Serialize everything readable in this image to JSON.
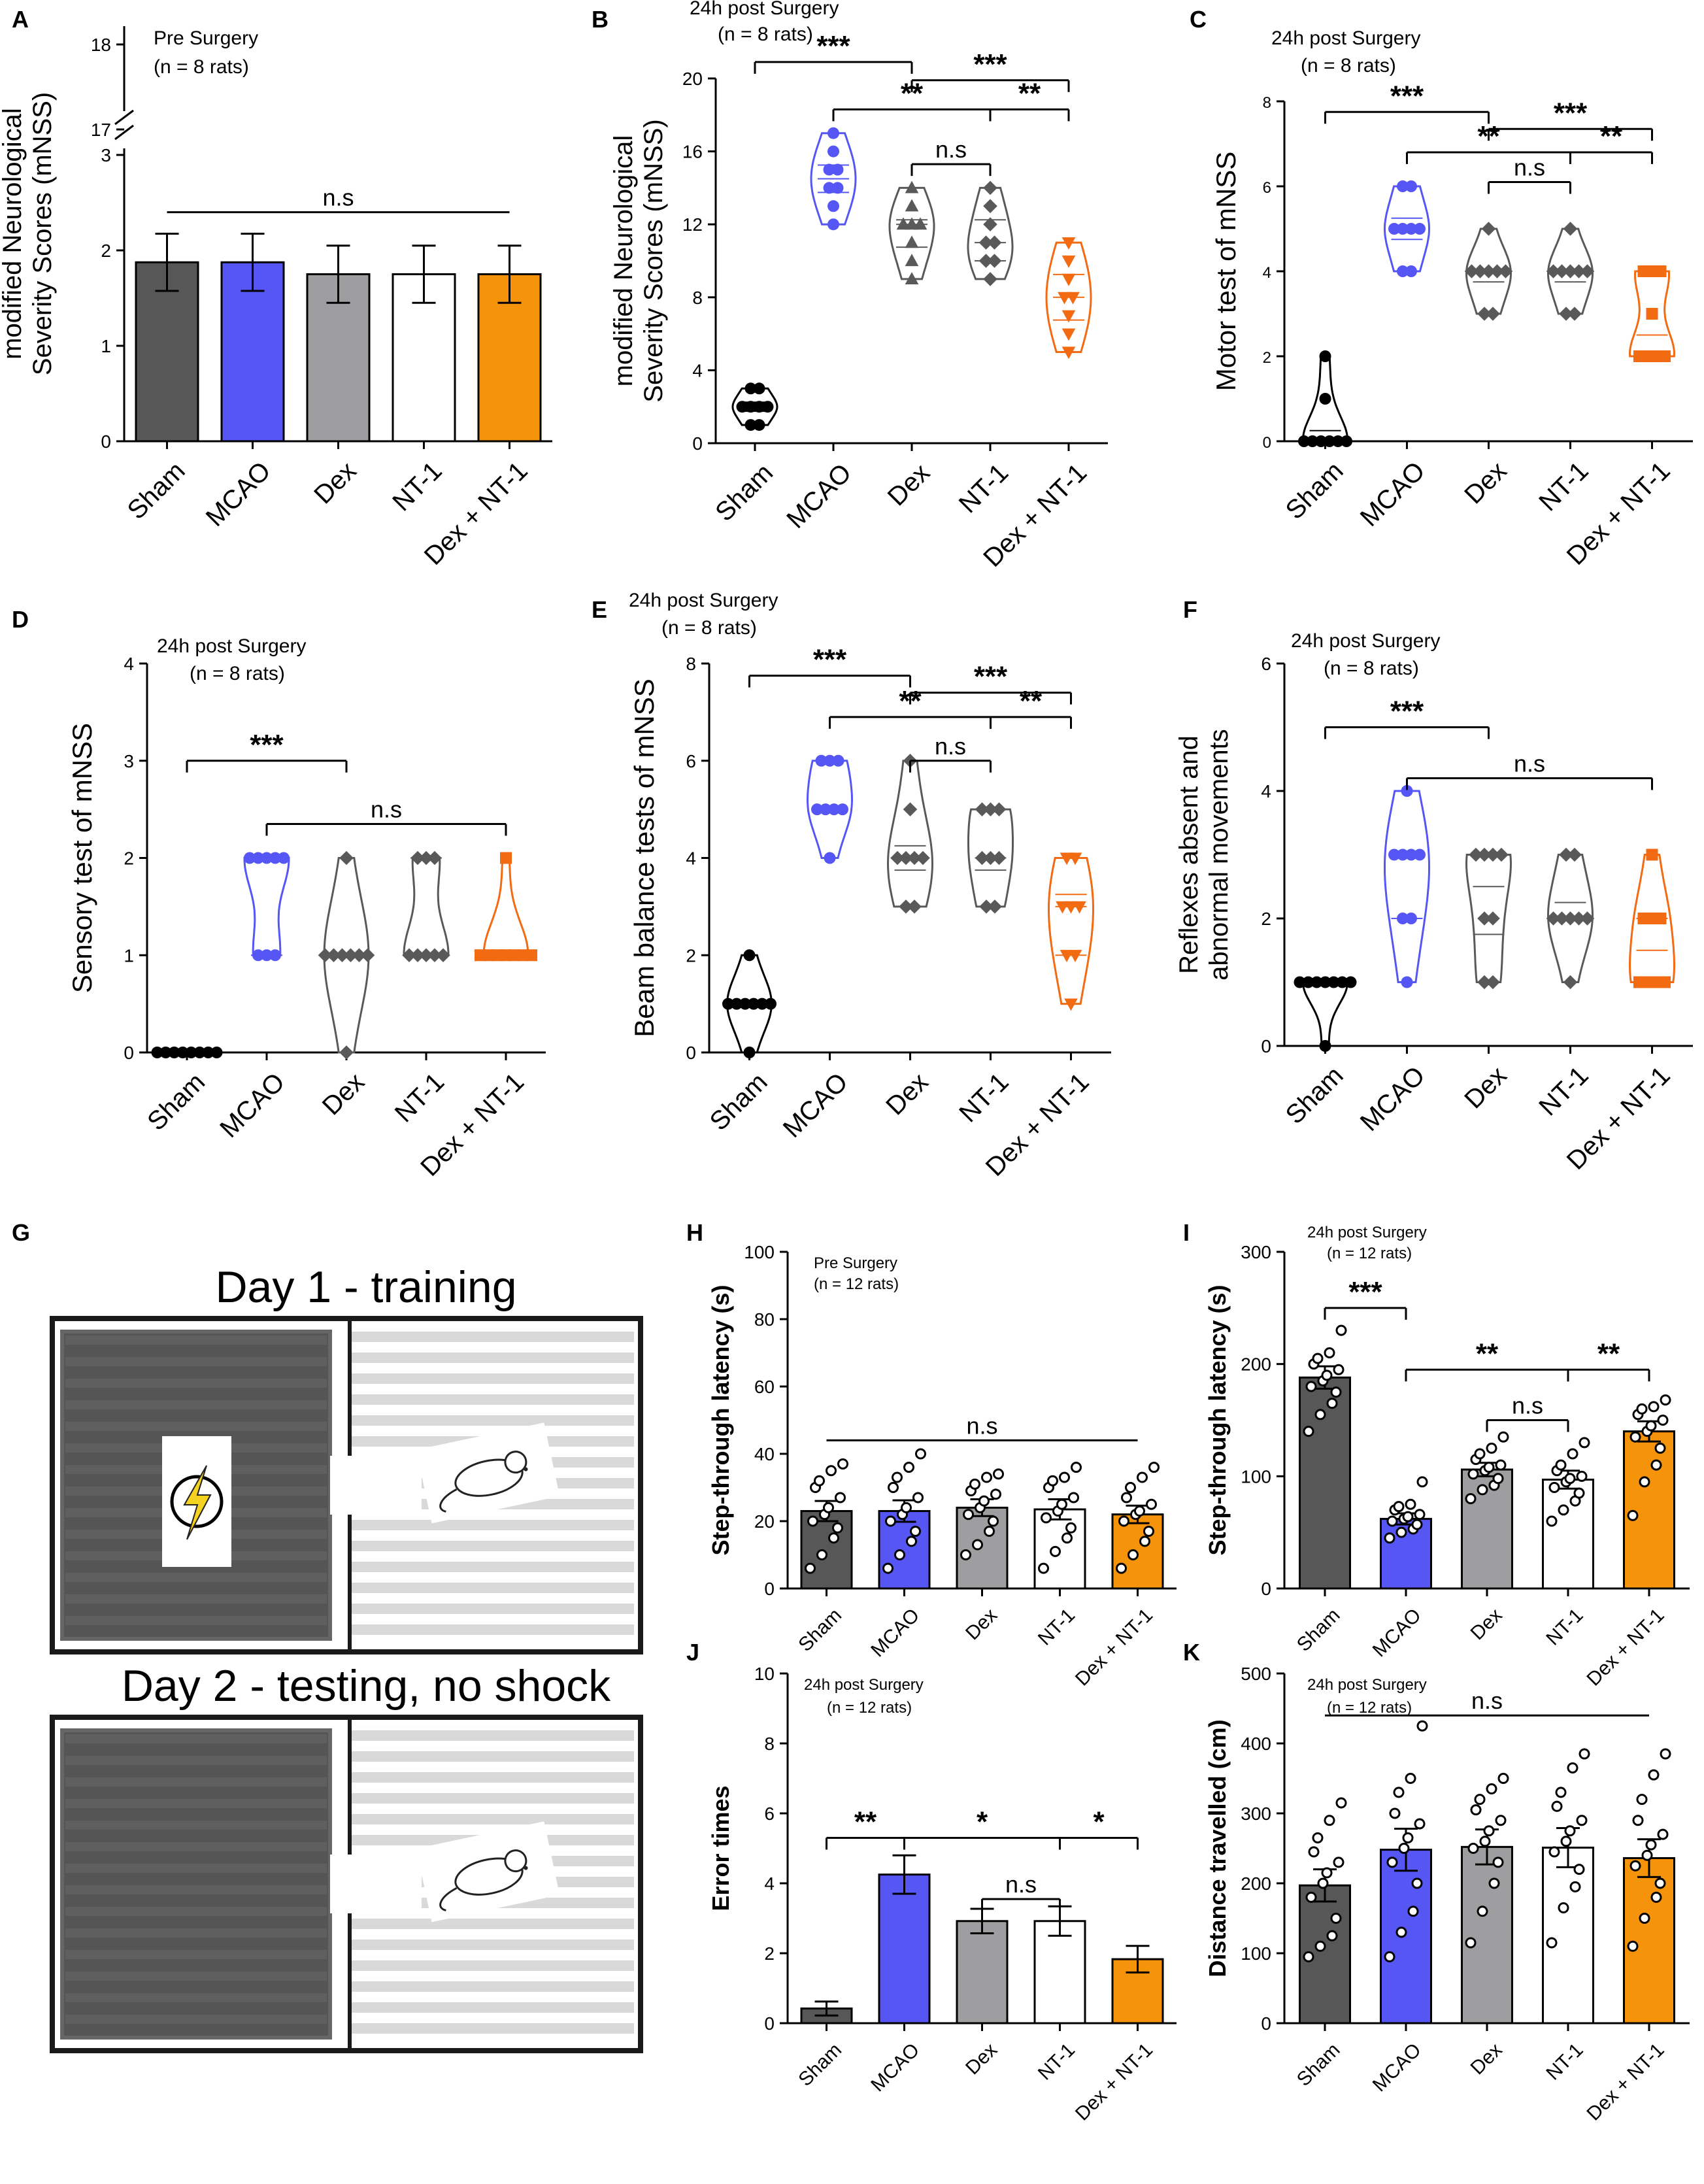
{
  "colors": {
    "sham": "#575757",
    "mcao": "#5656f5",
    "dex": "#9e9ea0",
    "nt1": "#ffffff",
    "combo": "#f5930a",
    "violin_sham": "#000000",
    "violin_mcao": "#5656f5",
    "violin_dex": "#595959",
    "violin_nt1": "#595959",
    "violin_combo": "#f26a12",
    "axis": "#000000"
  },
  "chart_data": [
    {
      "id": "A",
      "letter": "A",
      "type": "bar",
      "title": "Pre Surgery",
      "subtitle": "(n = 8 rats)",
      "ylabel": "modified Neurological Severity Scores (mNSS)",
      "ylabel_lines": [
        "modified Neurological",
        "Severity Scores (mNSS)"
      ],
      "categories": [
        "Sham",
        "MCAO",
        "Dex",
        "NT-1",
        "Dex + NT-1"
      ],
      "values": [
        1.875,
        1.875,
        1.75,
        1.75,
        1.75
      ],
      "errors": [
        0.3,
        0.3,
        0.3,
        0.3,
        0.3
      ],
      "ylim": [
        0,
        3
      ],
      "yticks": [
        0,
        1,
        2,
        3
      ],
      "broken_axis": {
        "upper_ticks": [
          17,
          18
        ]
      },
      "annotations": [
        {
          "from": 0,
          "to": 4,
          "label": "n.s",
          "y": 2.4
        }
      ]
    },
    {
      "id": "B",
      "letter": "B",
      "type": "violin",
      "title": "24h post Surgery",
      "subtitle": "(n = 8 rats)",
      "ylabel": "modified Neurological Severity Scores (mNSS)",
      "ylabel_lines": [
        "modified Neurological",
        "Severity Scores (mNSS)"
      ],
      "categories": [
        "Sham",
        "MCAO",
        "Dex",
        "NT-1",
        "Dex + NT-1"
      ],
      "marker": [
        "circle",
        "circle",
        "triangle",
        "diamond",
        "triangle-down"
      ],
      "series": [
        {
          "name": "Sham",
          "values": [
            1,
            1,
            2,
            2,
            2,
            2,
            3,
            3
          ]
        },
        {
          "name": "MCAO",
          "values": [
            12,
            13,
            14,
            14,
            15,
            15,
            16,
            17
          ]
        },
        {
          "name": "Dex",
          "values": [
            9,
            10,
            11,
            12,
            12,
            12,
            13,
            14
          ]
        },
        {
          "name": "NT-1",
          "values": [
            9,
            10,
            10,
            11,
            11,
            12,
            13,
            14
          ]
        },
        {
          "name": "Dex + NT-1",
          "values": [
            5,
            6,
            7,
            8,
            8,
            9,
            10,
            11
          ]
        }
      ],
      "ylim": [
        0,
        20
      ],
      "yticks": [
        0,
        4,
        8,
        12,
        16,
        20
      ],
      "annotations": [
        {
          "from": 0,
          "to": 2,
          "label": "***",
          "y": 20.9
        },
        {
          "from": 2,
          "to": 4,
          "label": "***",
          "y": 19.9
        },
        {
          "from": 1,
          "to": 3,
          "label": "**",
          "y": 18.3
        },
        {
          "from": 3,
          "to": 4,
          "label": "**",
          "y": 18.3
        },
        {
          "from": 2,
          "to": 3,
          "label": "n.s",
          "y": 15.3
        }
      ]
    },
    {
      "id": "C",
      "letter": "C",
      "type": "violin",
      "title": "24h post Surgery",
      "subtitle": "(n = 8 rats)",
      "ylabel": "Motor test of mNSS",
      "ylabel_lines": [
        "Motor test of mNSS"
      ],
      "categories": [
        "Sham",
        "MCAO",
        "Dex",
        "NT-1",
        "Dex + NT-1"
      ],
      "marker": [
        "circle",
        "circle",
        "diamond",
        "diamond",
        "square"
      ],
      "series": [
        {
          "name": "Sham",
          "values": [
            0,
            0,
            0,
            0,
            0,
            0,
            1,
            2
          ]
        },
        {
          "name": "MCAO",
          "values": [
            4,
            4,
            5,
            5,
            5,
            5,
            6,
            6
          ]
        },
        {
          "name": "Dex",
          "values": [
            3,
            3,
            4,
            4,
            4,
            4,
            4,
            5
          ]
        },
        {
          "name": "NT-1",
          "values": [
            3,
            3,
            4,
            4,
            4,
            4,
            4,
            5
          ]
        },
        {
          "name": "Dex + NT-1",
          "values": [
            2,
            2,
            2,
            2,
            3,
            4,
            4,
            4
          ]
        }
      ],
      "ylim": [
        0,
        8
      ],
      "yticks": [
        0,
        2,
        4,
        6,
        8
      ],
      "annotations": [
        {
          "from": 0,
          "to": 2,
          "label": "***",
          "y": 7.75
        },
        {
          "from": 2,
          "to": 4,
          "label": "***",
          "y": 7.35
        },
        {
          "from": 1,
          "to": 3,
          "label": "**",
          "y": 6.8
        },
        {
          "from": 3,
          "to": 4,
          "label": "**",
          "y": 6.8
        },
        {
          "from": 2,
          "to": 3,
          "label": "n.s",
          "y": 6.1
        }
      ]
    },
    {
      "id": "D",
      "letter": "D",
      "type": "violin",
      "title": "24h post Surgery",
      "subtitle": "(n = 8 rats)",
      "ylabel": "Sensory test of mNSS",
      "ylabel_lines": [
        "Sensory test of mNSS"
      ],
      "categories": [
        "Sham",
        "MCAO",
        "Dex",
        "NT-1",
        "Dex + NT-1"
      ],
      "marker": [
        "circle",
        "circle",
        "diamond",
        "diamond",
        "square"
      ],
      "series": [
        {
          "name": "Sham",
          "values": [
            0,
            0,
            0,
            0,
            0,
            0,
            0,
            0
          ]
        },
        {
          "name": "MCAO",
          "values": [
            1,
            1,
            1,
            2,
            2,
            2,
            2,
            2
          ]
        },
        {
          "name": "Dex",
          "values": [
            0,
            1,
            1,
            1,
            1,
            1,
            1,
            2
          ]
        },
        {
          "name": "NT-1",
          "values": [
            1,
            1,
            1,
            1,
            1,
            2,
            2,
            2
          ]
        },
        {
          "name": "Dex + NT-1",
          "values": [
            1,
            1,
            1,
            1,
            1,
            1,
            1,
            2
          ]
        }
      ],
      "ylim": [
        0,
        4
      ],
      "yticks": [
        0,
        1,
        2,
        3,
        4
      ],
      "annotations": [
        {
          "from": 0,
          "to": 2,
          "label": "***",
          "y": 3.0
        },
        {
          "from": 1,
          "to": 4,
          "label": "n.s",
          "y": 2.35
        }
      ]
    },
    {
      "id": "E",
      "letter": "E",
      "type": "violin",
      "title": "24h post Surgery",
      "subtitle": "(n = 8 rats)",
      "ylabel": "Beam balance tests of mNSS",
      "ylabel_lines": [
        "Beam balance tests of mNSS"
      ],
      "categories": [
        "Sham",
        "MCAO",
        "Dex",
        "NT-1",
        "Dex + NT-1"
      ],
      "marker": [
        "circle",
        "circle",
        "diamond",
        "diamond",
        "triangle-down"
      ],
      "series": [
        {
          "name": "Sham",
          "values": [
            0,
            1,
            1,
            1,
            1,
            1,
            1,
            2
          ]
        },
        {
          "name": "MCAO",
          "values": [
            4,
            5,
            5,
            5,
            5,
            6,
            6,
            6
          ]
        },
        {
          "name": "Dex",
          "values": [
            3,
            3,
            4,
            4,
            4,
            4,
            5,
            6
          ]
        },
        {
          "name": "NT-1",
          "values": [
            3,
            3,
            4,
            4,
            4,
            5,
            5,
            5
          ]
        },
        {
          "name": "Dex + NT-1",
          "values": [
            1,
            2,
            2,
            3,
            3,
            3,
            4,
            4
          ]
        }
      ],
      "ylim": [
        0,
        8
      ],
      "yticks": [
        0,
        2,
        4,
        6,
        8
      ],
      "annotations": [
        {
          "from": 0,
          "to": 2,
          "label": "***",
          "y": 7.75
        },
        {
          "from": 2,
          "to": 4,
          "label": "***",
          "y": 7.4
        },
        {
          "from": 1,
          "to": 3,
          "label": "**",
          "y": 6.9
        },
        {
          "from": 3,
          "to": 4,
          "label": "**",
          "y": 6.9
        },
        {
          "from": 2,
          "to": 3,
          "label": "n.s",
          "y": 6.0
        }
      ]
    },
    {
      "id": "F",
      "letter": "F",
      "type": "violin",
      "title": "24h post Surgery",
      "subtitle": "(n = 8 rats)",
      "ylabel": "Reflexes absent and abnormal movements",
      "ylabel_lines": [
        "Reflexes absent and",
        "abnormal movements"
      ],
      "categories": [
        "Sham",
        "MCAO",
        "Dex",
        "NT-1",
        "Dex + NT-1"
      ],
      "marker": [
        "circle",
        "circle",
        "diamond",
        "diamond",
        "square"
      ],
      "series": [
        {
          "name": "Sham",
          "values": [
            0,
            1,
            1,
            1,
            1,
            1,
            1,
            1
          ]
        },
        {
          "name": "MCAO",
          "values": [
            1,
            2,
            2,
            3,
            3,
            3,
            3,
            4
          ]
        },
        {
          "name": "Dex",
          "values": [
            1,
            1,
            2,
            2,
            3,
            3,
            3,
            3
          ]
        },
        {
          "name": "NT-1",
          "values": [
            1,
            2,
            2,
            2,
            2,
            2,
            3,
            3
          ]
        },
        {
          "name": "Dex + NT-1",
          "values": [
            1,
            1,
            1,
            1,
            2,
            2,
            2,
            3
          ]
        }
      ],
      "ylim": [
        0,
        6
      ],
      "yticks": [
        0,
        2,
        4,
        6
      ],
      "annotations": [
        {
          "from": 0,
          "to": 2,
          "label": "***",
          "y": 5.0
        },
        {
          "from": 1,
          "to": 4,
          "label": "n.s",
          "y": 4.2
        }
      ]
    },
    {
      "id": "H",
      "letter": "H",
      "type": "bar-scatter",
      "title": "Pre Surgery",
      "subtitle": "(n = 12 rats)",
      "ylabel": "Step-through latency (s)",
      "categories": [
        "Sham",
        "MCAO",
        "Dex",
        "NT-1",
        "Dex + NT-1"
      ],
      "values": [
        23,
        23,
        24,
        23.5,
        22
      ],
      "errors": [
        3,
        3.2,
        2.5,
        3,
        2.6
      ],
      "points": [
        [
          6,
          10,
          15,
          18,
          20,
          22,
          24,
          27,
          30,
          32,
          35,
          37
        ],
        [
          6,
          10,
          14,
          17,
          20,
          22,
          24,
          27,
          30,
          33,
          36,
          40
        ],
        [
          10,
          13,
          17,
          20,
          22,
          24,
          26,
          28,
          29,
          31,
          33,
          34
        ],
        [
          6,
          11,
          15,
          18,
          21,
          23,
          25,
          27,
          30,
          32,
          33,
          36
        ],
        [
          6,
          10,
          14,
          17,
          20,
          22,
          23,
          25,
          27,
          30,
          33,
          36
        ]
      ],
      "ylim": [
        0,
        100
      ],
      "yticks": [
        0,
        20,
        40,
        60,
        80,
        100
      ],
      "annotations": [
        {
          "from": 0,
          "to": 4,
          "label": "n.s",
          "y": 44
        }
      ]
    },
    {
      "id": "I",
      "letter": "I",
      "type": "bar-scatter",
      "title": "24h post Surgery",
      "subtitle": "(n = 12 rats)",
      "ylabel": "Step-through latency (s)",
      "categories": [
        "Sham",
        "MCAO",
        "Dex",
        "NT-1",
        "Dex + NT-1"
      ],
      "values": [
        188,
        62,
        106,
        97,
        140
      ],
      "errors": [
        10,
        5,
        6,
        8,
        9
      ],
      "points": [
        [
          140,
          155,
          165,
          175,
          180,
          185,
          190,
          195,
          200,
          205,
          210,
          230
        ],
        [
          45,
          50,
          53,
          57,
          60,
          62,
          64,
          66,
          70,
          73,
          75,
          95
        ],
        [
          80,
          88,
          92,
          98,
          102,
          105,
          108,
          110,
          115,
          120,
          125,
          135
        ],
        [
          60,
          70,
          78,
          85,
          90,
          95,
          98,
          100,
          105,
          110,
          120,
          130
        ],
        [
          65,
          95,
          110,
          125,
          135,
          140,
          145,
          150,
          155,
          160,
          162,
          168
        ]
      ],
      "ylim": [
        0,
        300
      ],
      "yticks": [
        0,
        100,
        200,
        300
      ],
      "annotations": [
        {
          "from": 0,
          "to": 1,
          "label": "***",
          "y": 250
        },
        {
          "from": 1,
          "to": 3,
          "label": "**",
          "y": 195
        },
        {
          "from": 3,
          "to": 4,
          "label": "**",
          "y": 195
        },
        {
          "from": 2,
          "to": 3,
          "label": "n.s",
          "y": 150
        }
      ]
    },
    {
      "id": "J",
      "letter": "J",
      "type": "bar",
      "title": "24h post Surgery",
      "subtitle": "(n = 12 rats)",
      "ylabel": "Error times",
      "categories": [
        "Sham",
        "MCAO",
        "Dex",
        "NT-1",
        "Dex + NT-1"
      ],
      "values": [
        0.42,
        4.25,
        2.92,
        2.92,
        1.83
      ],
      "errors": [
        0.2,
        0.55,
        0.35,
        0.42,
        0.38
      ],
      "ylim": [
        0,
        10
      ],
      "yticks": [
        0,
        2,
        4,
        6,
        8,
        10
      ],
      "annotations": [
        {
          "from": 0,
          "to": 1,
          "label": "**",
          "y": 5.3
        },
        {
          "from": 1,
          "to": 3,
          "label": "*",
          "y": 5.3
        },
        {
          "from": 3,
          "to": 4,
          "label": "*",
          "y": 5.3
        },
        {
          "from": 2,
          "to": 3,
          "label": "n.s",
          "y": 3.55
        }
      ]
    },
    {
      "id": "K",
      "letter": "K",
      "type": "bar-scatter",
      "title": "24h post Surgery",
      "subtitle": "(n = 12 rats)",
      "ylabel": "Distance travelled (cm)",
      "categories": [
        "Sham",
        "MCAO",
        "Dex",
        "NT-1",
        "Dex + NT-1"
      ],
      "values": [
        197,
        248,
        252,
        251,
        236
      ],
      "errors": [
        23,
        30,
        25,
        28,
        27
      ],
      "points": [
        [
          95,
          110,
          125,
          150,
          180,
          200,
          215,
          230,
          245,
          265,
          290,
          315
        ],
        [
          95,
          130,
          160,
          200,
          230,
          250,
          265,
          285,
          300,
          330,
          350,
          425
        ],
        [
          115,
          160,
          200,
          230,
          250,
          260,
          275,
          290,
          305,
          320,
          335,
          350
        ],
        [
          115,
          165,
          195,
          220,
          245,
          260,
          275,
          290,
          310,
          330,
          365,
          385
        ],
        [
          110,
          150,
          180,
          200,
          225,
          240,
          255,
          270,
          290,
          320,
          355,
          385
        ]
      ],
      "ylim": [
        0,
        500
      ],
      "yticks": [
        0,
        100,
        200,
        300,
        400,
        500
      ],
      "annotations": [
        {
          "from": 0,
          "to": 4,
          "label": "n.s",
          "y": 440
        }
      ]
    }
  ],
  "panelG": {
    "letter": "G",
    "day1": "Day 1 - training",
    "day2": "Day 2 - testing, no shock",
    "shock_icon": "lightning-bolt-icon",
    "mouse_icon": "mouse-icon"
  }
}
